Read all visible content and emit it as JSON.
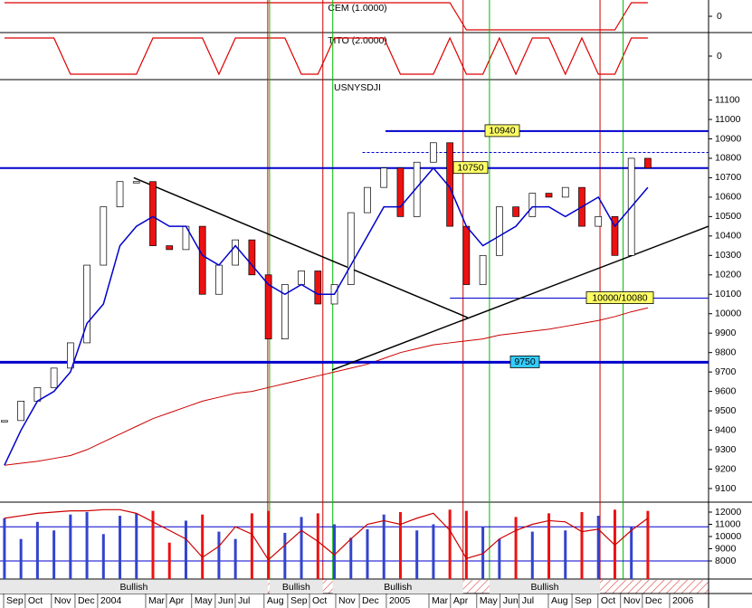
{
  "chart_data": {
    "type": "candlestick",
    "title": "USNYSDJI",
    "xlim": [
      -0.27,
      42.68
    ],
    "xticks": [
      {
        "value": -0.05,
        "label": "Sep"
      },
      {
        "value": 1.26,
        "label": "Oct"
      },
      {
        "value": 2.85,
        "label": "Nov"
      },
      {
        "value": 4.28,
        "label": "Dec"
      },
      {
        "value": 5.65,
        "label": "2004"
      },
      {
        "value": 8.56,
        "label": "Mar"
      },
      {
        "value": 9.82,
        "label": "Apr"
      },
      {
        "value": 11.35,
        "label": "May"
      },
      {
        "value": 12.78,
        "label": "Jun"
      },
      {
        "value": 13.99,
        "label": "Jul"
      },
      {
        "value": 15.74,
        "label": "Aug"
      },
      {
        "value": 17.17,
        "label": "Sep"
      },
      {
        "value": 18.49,
        "label": "Oct"
      },
      {
        "value": 20.08,
        "label": "Nov"
      },
      {
        "value": 21.51,
        "label": "Dec"
      },
      {
        "value": 23.15,
        "label": "2005"
      },
      {
        "value": 25.73,
        "label": "Mar"
      },
      {
        "value": 27.04,
        "label": "Apr"
      },
      {
        "value": 28.63,
        "label": "May"
      },
      {
        "value": 30.05,
        "label": "Jun"
      },
      {
        "value": 31.2,
        "label": "Jul"
      },
      {
        "value": 32.97,
        "label": "Aug"
      },
      {
        "value": 34.4,
        "label": "Sep"
      },
      {
        "value": 35.98,
        "label": "Oct"
      },
      {
        "value": 37.35,
        "label": "Nov"
      },
      {
        "value": 38.67,
        "label": "Dec"
      },
      {
        "value": 40.32,
        "label": "2006"
      }
    ],
    "ylim": [
      9030,
      11205
    ],
    "yticks": [
      9100,
      9200,
      9300,
      9400,
      9500,
      9600,
      9700,
      9800,
      9900,
      10000,
      10100,
      10200,
      10300,
      10400,
      10500,
      10600,
      10700,
      10800,
      10900,
      11000,
      11100
    ],
    "up_color": "#ffffff",
    "down_color": "#ee1111",
    "close": [
      9450,
      9550,
      9620,
      9720,
      9850,
      10250,
      10550,
      10680,
      10680,
      10350,
      10330,
      10450,
      10100,
      10250,
      10380,
      10200,
      9870,
      10150,
      10220,
      10050,
      10150,
      10520,
      10650,
      10750,
      10500,
      10780,
      10880,
      10450,
      10150,
      10300,
      10550,
      10500,
      10620,
      10600,
      10650,
      10450,
      10500,
      10300,
      10800,
      10750
    ],
    "ma_short": {
      "color": "#0000cc",
      "values": [
        9220,
        9400,
        9550,
        9600,
        9700,
        9950,
        10050,
        10350,
        10450,
        10500,
        10450,
        10450,
        10300,
        10250,
        10350,
        10250,
        10150,
        10100,
        10150,
        10100,
        10100,
        10250,
        10400,
        10550,
        10550,
        10650,
        10750,
        10650,
        10450,
        10350,
        10400,
        10450,
        10550,
        10550,
        10500,
        10550,
        10600,
        10450,
        10550,
        10650
      ]
    },
    "ma_long": {
      "color": "#cc0000",
      "values": [
        9220,
        9230,
        9240,
        9255,
        9270,
        9300,
        9340,
        9380,
        9420,
        9460,
        9490,
        9520,
        9550,
        9570,
        9590,
        9600,
        9620,
        9640,
        9660,
        9680,
        9700,
        9720,
        9740,
        9770,
        9800,
        9820,
        9840,
        9850,
        9860,
        9870,
        9890,
        9900,
        9910,
        9920,
        9935,
        9950,
        9965,
        9985,
        10010,
        10030
      ]
    },
    "levels": [
      {
        "value": 10940,
        "label": "10940",
        "color": "#0000cc",
        "box": "#ffff66",
        "from": 23.1
      },
      {
        "value": 10750,
        "label": "10750",
        "color": "#0000cc",
        "box": "#ffff66",
        "from": -0.27
      },
      {
        "value": 9750,
        "label": "9750",
        "color": "#0000cc",
        "box": "#33ccff",
        "from": -0.27
      },
      {
        "value": 10080,
        "label": "10000/10080",
        "color": "#0000cc",
        "box": "#ffff66",
        "from": 27.0
      },
      {
        "value": 10830,
        "color": "#0000cc",
        "from": 21.7,
        "dashed": true
      }
    ],
    "trendlines": [
      {
        "color": "#000000",
        "points": [
          [
            7.84,
            10700
          ],
          [
            28.08,
            9980
          ]
        ]
      },
      {
        "color": "#000000",
        "points": [
          [
            19.86,
            9710
          ],
          [
            42.68,
            10450
          ]
        ]
      }
    ],
    "signals": [
      {
        "x": 15.96,
        "color": "#cc0000"
      },
      {
        "x": 16.07,
        "color": "#00bb00"
      },
      {
        "x": 19.3,
        "color": "#cc0000"
      },
      {
        "x": 19.9,
        "color": "#00bb00"
      },
      {
        "x": 27.8,
        "color": "#cc0000"
      },
      {
        "x": 29.4,
        "color": "#00bb00"
      },
      {
        "x": 36.1,
        "color": "#cc0000"
      },
      {
        "x": 37.5,
        "color": "#00bb00"
      }
    ],
    "regimes": [
      {
        "label": "Bullish",
        "from": -0.27,
        "to": 15.96
      },
      {
        "label": "Bullish",
        "from": 16.07,
        "to": 19.3
      },
      {
        "label": "Bullish",
        "from": 19.9,
        "to": 27.8
      },
      {
        "label": "Bullish",
        "from": 29.4,
        "to": 36.1
      }
    ],
    "indicators": [
      {
        "title": "CEM (1.0000)",
        "ylim": [
          -1.2,
          1.2
        ],
        "yticks": [
          0
        ],
        "color": "#dd0000",
        "values": [
          1,
          1,
          1,
          1,
          1,
          1,
          1,
          1,
          1,
          1,
          1,
          1,
          1,
          1,
          1,
          1,
          1,
          1,
          1,
          1,
          1,
          1,
          1,
          1,
          1,
          1,
          1,
          1,
          -1,
          -1,
          -1,
          -1,
          -1,
          -1,
          -1,
          -1,
          -1,
          -1,
          1,
          1
        ]
      },
      {
        "title": "TITO (2.0000)",
        "ylim": [
          -1.3,
          1.3
        ],
        "yticks": [
          0
        ],
        "color": "#dd0000",
        "values": [
          1,
          1,
          1,
          1,
          -1,
          -1,
          -1,
          -1,
          -1,
          1,
          1,
          1,
          1,
          -1,
          1,
          1,
          1,
          1,
          -1,
          -1,
          1,
          1,
          1,
          1,
          -1,
          -1,
          -1,
          1,
          -1,
          -1,
          1,
          -1,
          1,
          1,
          -1,
          1,
          -1,
          -1,
          1,
          1
        ]
      }
    ],
    "volume": {
      "ylim": [
        6520,
        12815
      ],
      "yticks": [
        12000,
        11000,
        10000,
        9000,
        8000
      ],
      "up_color": "#3344cc",
      "down_color": "#ee1111",
      "values": [
        11500,
        9800,
        11200,
        10500,
        11800,
        12000,
        10200,
        11700,
        11900,
        12100,
        9500,
        11300,
        11800,
        10400,
        9800,
        11900,
        12100,
        10300,
        11600,
        11900,
        11000,
        9900,
        10600,
        11800,
        12000,
        10500,
        11000,
        12200,
        12100,
        10800,
        9800,
        11600,
        10400,
        11900,
        10500,
        12000,
        11700,
        12200,
        10800,
        12100
      ],
      "oscillator": {
        "color": "#cc0000",
        "values": [
          11500,
          11700,
          11900,
          12000,
          12100,
          12100,
          12200,
          12200,
          11900,
          11200,
          10500,
          9800,
          8300,
          9200,
          10800,
          10200,
          8100,
          9300,
          10500,
          9600,
          8500,
          9800,
          11000,
          11300,
          11000,
          11500,
          11900,
          10500,
          8200,
          8600,
          9800,
          10500,
          11000,
          11300,
          11200,
          10400,
          10600,
          9300,
          10500,
          11500
        ]
      },
      "levels": [
        10800,
        8000
      ]
    }
  }
}
